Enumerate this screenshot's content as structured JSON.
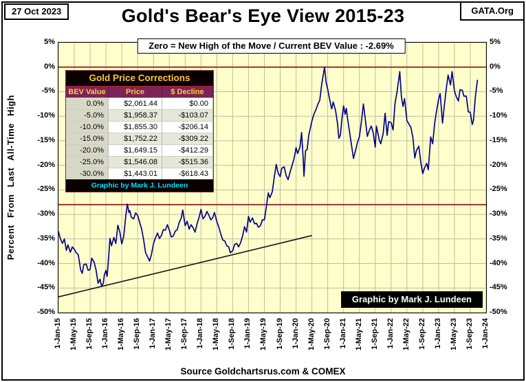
{
  "header": {
    "date": "27 Oct 2023",
    "org": "GATA.Org",
    "title": "Gold's Bear's Eye View 2015-23",
    "subtitle": "Zero = New High of the Move / Current BEV Value : -2.69%"
  },
  "corrections_table": {
    "title": "Gold Price Corrections",
    "columns": [
      "BEV Value",
      "Price",
      "$ Decline"
    ],
    "rows": [
      [
        "0.0%",
        "$2,061.44",
        "$0.00"
      ],
      [
        "-5.0%",
        "$1,958.37",
        "-$103.07"
      ],
      [
        "-10.0%",
        "$1,855.30",
        "-$206.14"
      ],
      [
        "-15.0%",
        "$1,752.22",
        "-$309.22"
      ],
      [
        "-20.0%",
        "$1,649.15",
        "-$412.29"
      ],
      [
        "-25.0%",
        "$1,546.08",
        "-$515.36"
      ],
      [
        "-30.0%",
        "$1,443.01",
        "-$618.43"
      ]
    ],
    "footer": "Graphic by Mark J. Lundeen"
  },
  "credit_box": "Graphic by Mark J. Lundeen",
  "footer": {
    "source": "Source Goldchartsrus.com & COMEX"
  },
  "colors": {
    "plot_bg": "#ffffcc",
    "grid": "#bdbd9e",
    "frame": "#000000"
  },
  "chart_data": {
    "type": "line",
    "title": "Gold's Bear's Eye View 2015-23",
    "ylabel": "Percent From Last All-Time High",
    "ylim": [
      -50,
      5
    ],
    "xlim": [
      0,
      108
    ],
    "x_unit": "months since 1-Jan-2015",
    "x_tick_interval_months": 4,
    "y_ticks": [
      "5%",
      "0%",
      "-5%",
      "-10%",
      "-15%",
      "-20%",
      "-25%",
      "-30%",
      "-35%",
      "-40%",
      "-45%",
      "-50%"
    ],
    "x_ticks": [
      "1-Jan-15",
      "1-May-15",
      "1-Sep-15",
      "1-Jan-16",
      "1-May-16",
      "1-Sep-16",
      "1-Jan-17",
      "1-May-17",
      "1-Sep-17",
      "1-Jan-18",
      "1-May-18",
      "1-Sep-18",
      "1-Jan-19",
      "1-May-19",
      "1-Sep-19",
      "1-Jan-20",
      "1-May-20",
      "1-Sep-20",
      "1-Jan-21",
      "1-May-21",
      "1-Sep-21",
      "1-Jan-22",
      "1-May-22",
      "1-Sep-22",
      "1-Jan-23",
      "1-May-23",
      "1-Sep-23",
      "1-Jan-24"
    ],
    "end_value_pct": -2.69,
    "reference_lines": {
      "color": "#992222",
      "y_values": [
        0,
        -28
      ]
    },
    "trend_line": {
      "color": "#111111",
      "points": [
        [
          0,
          -46.8
        ],
        [
          64,
          -34.3
        ]
      ]
    },
    "series": [
      {
        "name": "Gold BEV (% below last all-time high)",
        "color": "#00008b",
        "points": [
          [
            0,
            -33.5
          ],
          [
            0.5,
            -35
          ],
          [
            1,
            -35.9
          ],
          [
            1.5,
            -35
          ],
          [
            2,
            -37.3
          ],
          [
            2.4,
            -36.2
          ],
          [
            3,
            -37.7
          ],
          [
            3.5,
            -36.6
          ],
          [
            4,
            -37.1
          ],
          [
            4.5,
            -37.8
          ],
          [
            5,
            -38.2
          ],
          [
            5.6,
            -41.3
          ],
          [
            6,
            -42
          ],
          [
            6.4,
            -40.2
          ],
          [
            7,
            -40.1
          ],
          [
            7.5,
            -41.4
          ],
          [
            8,
            -41.2
          ],
          [
            8.4,
            -38.9
          ],
          [
            9,
            -39.7
          ],
          [
            9.5,
            -41.3
          ],
          [
            10,
            -44
          ],
          [
            10.5,
            -43.2
          ],
          [
            10.9,
            -44.6
          ],
          [
            11.3,
            -44.1
          ],
          [
            11.6,
            -42.3
          ],
          [
            12,
            -41.4
          ],
          [
            12.3,
            -42.6
          ],
          [
            12.7,
            -38.6
          ],
          [
            13,
            -34.9
          ],
          [
            13.4,
            -36.4
          ],
          [
            14,
            -34.7
          ],
          [
            14.5,
            -35.9
          ],
          [
            15,
            -32.2
          ],
          [
            15.5,
            -33.6
          ],
          [
            16,
            -36
          ],
          [
            16.5,
            -34.4
          ],
          [
            17,
            -30.3
          ],
          [
            17.4,
            -27.9
          ],
          [
            17.8,
            -29.6
          ],
          [
            18,
            -29.2
          ],
          [
            18.4,
            -30.6
          ],
          [
            19,
            -30.9
          ],
          [
            19.5,
            -29.7
          ],
          [
            20,
            -30.2
          ],
          [
            20.5,
            -31.6
          ],
          [
            21,
            -32.9
          ],
          [
            21.5,
            -35.1
          ],
          [
            22,
            -37.8
          ],
          [
            22.5,
            -38.6
          ],
          [
            23,
            -39.5
          ],
          [
            23.5,
            -38.1
          ],
          [
            24,
            -36
          ],
          [
            24.4,
            -35
          ],
          [
            25,
            -33.8
          ],
          [
            25.5,
            -34.9
          ],
          [
            26,
            -34.3
          ],
          [
            26.5,
            -33.1
          ],
          [
            27,
            -33.2
          ],
          [
            27.5,
            -32.1
          ],
          [
            28,
            -33.2
          ],
          [
            28.5,
            -34.6
          ],
          [
            29,
            -34.4
          ],
          [
            29.5,
            -33.4
          ],
          [
            30,
            -33.1
          ],
          [
            30.5,
            -31.6
          ],
          [
            31,
            -30.8
          ],
          [
            31.4,
            -29.1
          ],
          [
            31.8,
            -31.2
          ],
          [
            32,
            -32.3
          ],
          [
            32.5,
            -31.4
          ],
          [
            33,
            -33
          ],
          [
            33.5,
            -32.1
          ],
          [
            34,
            -32.7
          ],
          [
            34.5,
            -33.6
          ],
          [
            35,
            -31.9
          ],
          [
            35.5,
            -30.6
          ],
          [
            36,
            -29
          ],
          [
            36.5,
            -30.9
          ],
          [
            37,
            -30.4
          ],
          [
            37.5,
            -29.4
          ],
          [
            38,
            -30.2
          ],
          [
            38.5,
            -31.1
          ],
          [
            39,
            -30.6
          ],
          [
            39.4,
            -29.6
          ],
          [
            40,
            -31.5
          ],
          [
            40.5,
            -32.6
          ],
          [
            41,
            -34
          ],
          [
            41.5,
            -35.2
          ],
          [
            42,
            -35.4
          ],
          [
            42.5,
            -36.4
          ],
          [
            43,
            -36.6
          ],
          [
            43.4,
            -37.8
          ],
          [
            44,
            -37.4
          ],
          [
            44.5,
            -36.1
          ],
          [
            45,
            -35.9
          ],
          [
            45.5,
            -36.6
          ],
          [
            46,
            -35.8
          ],
          [
            46.5,
            -34.4
          ],
          [
            47,
            -32.5
          ],
          [
            47.5,
            -33.6
          ],
          [
            48,
            -30.4
          ],
          [
            48.4,
            -31.6
          ],
          [
            49,
            -30.7
          ],
          [
            49.5,
            -31.9
          ],
          [
            50,
            -31.8
          ],
          [
            50.5,
            -32.6
          ],
          [
            51,
            -32.3
          ],
          [
            51.5,
            -31.1
          ],
          [
            52,
            -31.1
          ],
          [
            52.5,
            -28.4
          ],
          [
            53,
            -25.6
          ],
          [
            53.4,
            -26.6
          ],
          [
            54,
            -25.4
          ],
          [
            54.5,
            -22.4
          ],
          [
            55,
            -19.8
          ],
          [
            55.5,
            -21.6
          ],
          [
            56,
            -22.3
          ],
          [
            56.4,
            -20.6
          ],
          [
            57,
            -20.3
          ],
          [
            57.5,
            -22.1
          ],
          [
            58,
            -22.9
          ],
          [
            58.5,
            -21.4
          ],
          [
            59,
            -20
          ],
          [
            59.5,
            -18.6
          ],
          [
            60,
            -16.4
          ],
          [
            60.4,
            -17.6
          ],
          [
            61,
            -16.3
          ],
          [
            61.4,
            -13.3
          ],
          [
            61.8,
            -18.5
          ],
          [
            62,
            -22.2
          ],
          [
            62.4,
            -17
          ],
          [
            62.8,
            -16.8
          ],
          [
            63.2,
            -13.9
          ],
          [
            64,
            -11
          ],
          [
            64.5,
            -9.6
          ],
          [
            65,
            -8.7
          ],
          [
            65.5,
            -7.6
          ],
          [
            66,
            -6.7
          ],
          [
            66.5,
            -3.4
          ],
          [
            67.2,
            0
          ],
          [
            67.6,
            -3.1
          ],
          [
            68,
            -4.5
          ],
          [
            68.5,
            -6.6
          ],
          [
            69,
            -8.5
          ],
          [
            69.4,
            -7.1
          ],
          [
            70,
            -8.9
          ],
          [
            70.5,
            -11.6
          ],
          [
            70.8,
            -14.5
          ],
          [
            71.2,
            -13.8
          ],
          [
            71.6,
            -10.4
          ],
          [
            72,
            -7.9
          ],
          [
            72.4,
            -9.6
          ],
          [
            72.7,
            -8.4
          ],
          [
            73,
            -10.4
          ],
          [
            73.5,
            -13.1
          ],
          [
            74,
            -15.9
          ],
          [
            74.5,
            -18.6
          ],
          [
            75,
            -17.1
          ],
          [
            75.5,
            -15.4
          ],
          [
            76,
            -14.2
          ],
          [
            76.5,
            -11.1
          ],
          [
            77,
            -7.5
          ],
          [
            77.5,
            -10.6
          ],
          [
            78,
            -14.1
          ],
          [
            78.5,
            -12.9
          ],
          [
            79,
            -12
          ],
          [
            79.5,
            -13.4
          ],
          [
            80,
            -16.3
          ],
          [
            80.3,
            -12
          ],
          [
            81,
            -14.8
          ],
          [
            81.4,
            -15.6
          ],
          [
            82,
            -13.5
          ],
          [
            82.5,
            -9.4
          ],
          [
            83,
            -13.9
          ],
          [
            83.4,
            -11.1
          ],
          [
            84,
            -11.3
          ],
          [
            84.5,
            -12.8
          ],
          [
            85,
            -7.4
          ],
          [
            85.5,
            -5.1
          ],
          [
            86.2,
            -0.9
          ],
          [
            86.6,
            -6
          ],
          [
            87,
            -8
          ],
          [
            87.4,
            -6.4
          ],
          [
            88,
            -10.9
          ],
          [
            88.5,
            -11.6
          ],
          [
            89,
            -12.3
          ],
          [
            89.5,
            -14.3
          ],
          [
            90,
            -18.5
          ],
          [
            90.4,
            -17
          ],
          [
            91,
            -16.1
          ],
          [
            91.5,
            -19.4
          ],
          [
            92,
            -21.7
          ],
          [
            92.4,
            -20.6
          ],
          [
            93,
            -19.6
          ],
          [
            93.4,
            -20.9
          ],
          [
            94,
            -14.2
          ],
          [
            94.5,
            -15.6
          ],
          [
            95,
            -11.5
          ],
          [
            95.5,
            -8.9
          ],
          [
            96,
            -6.5
          ],
          [
            96.4,
            -5.4
          ],
          [
            97,
            -11.4
          ],
          [
            97.4,
            -8.1
          ],
          [
            98,
            -4
          ],
          [
            98.4,
            -1.6
          ],
          [
            99,
            -3.6
          ],
          [
            99.4,
            -0.9
          ],
          [
            100,
            -4.8
          ],
          [
            100.5,
            -6.1
          ],
          [
            101,
            -6.9
          ],
          [
            101.4,
            -4.6
          ],
          [
            102,
            -4.7
          ],
          [
            102.4,
            -5.9
          ],
          [
            103,
            -5.9
          ],
          [
            103.5,
            -9.1
          ],
          [
            104,
            -9.2
          ],
          [
            104.5,
            -11.7
          ],
          [
            104.8,
            -10.9
          ],
          [
            105.3,
            -6
          ],
          [
            105.8,
            -2.69
          ]
        ]
      }
    ]
  }
}
